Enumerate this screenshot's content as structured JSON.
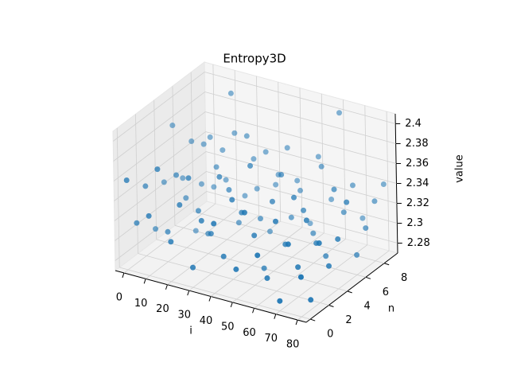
{
  "chart_data": {
    "type": "scatter3d",
    "title": "Entropy3D",
    "xlabel": "i",
    "ylabel": "n",
    "zlabel": "value",
    "color": "#1f77b4",
    "grid": true,
    "xlim": [
      -4,
      84
    ],
    "ylim": [
      -0.45,
      9.45
    ],
    "zlim": [
      2.27,
      2.41
    ],
    "xticks": [
      0,
      10,
      20,
      30,
      40,
      50,
      60,
      70,
      80
    ],
    "yticks": [
      0,
      2,
      4,
      6,
      8
    ],
    "zticks": [
      2.28,
      2.3,
      2.32,
      2.34,
      2.36,
      2.38,
      2.4
    ],
    "x": [
      0,
      0,
      0,
      0,
      0,
      0,
      0,
      0,
      0,
      0,
      10,
      10,
      10,
      10,
      10,
      10,
      10,
      10,
      10,
      10,
      20,
      20,
      20,
      20,
      20,
      20,
      20,
      20,
      20,
      20,
      30,
      30,
      30,
      30,
      30,
      30,
      30,
      30,
      30,
      30,
      40,
      40,
      40,
      40,
      40,
      40,
      40,
      40,
      40,
      40,
      50,
      50,
      50,
      50,
      50,
      50,
      50,
      50,
      50,
      50,
      60,
      60,
      60,
      60,
      60,
      60,
      60,
      60,
      60,
      60,
      70,
      70,
      70,
      70,
      70,
      70,
      70,
      70,
      70,
      70,
      80,
      80,
      80,
      80,
      80,
      80,
      80,
      80,
      80,
      80
    ],
    "y": [
      0,
      1,
      2,
      3,
      4,
      5,
      6,
      7,
      8,
      9,
      0,
      1,
      2,
      3,
      4,
      5,
      6,
      7,
      8,
      9,
      0,
      1,
      2,
      3,
      4,
      5,
      6,
      7,
      8,
      9,
      0,
      1,
      2,
      3,
      4,
      5,
      6,
      7,
      8,
      9,
      0,
      1,
      2,
      3,
      4,
      5,
      6,
      7,
      8,
      9,
      0,
      1,
      2,
      3,
      4,
      5,
      6,
      7,
      8,
      9,
      0,
      1,
      2,
      3,
      4,
      5,
      6,
      7,
      8,
      9,
      0,
      1,
      2,
      3,
      4,
      5,
      6,
      7,
      8,
      9,
      0,
      1,
      2,
      3,
      4,
      5,
      6,
      7,
      8,
      9
    ],
    "values": [
      2.36,
      2.31,
      2.34,
      2.29,
      2.33,
      2.38,
      2.32,
      2.35,
      2.3,
      2.34,
      2.33,
      2.37,
      2.3,
      2.35,
      2.32,
      2.28,
      2.36,
      2.31,
      2.34,
      2.39,
      2.31,
      2.34,
      2.36,
      2.32,
      2.29,
      2.35,
      2.33,
      2.37,
      2.3,
      2.33,
      2.29,
      2.33,
      2.31,
      2.36,
      2.34,
      2.3,
      2.38,
      2.32,
      2.35,
      2.31,
      2.34,
      2.3,
      2.35,
      2.33,
      2.37,
      2.31,
      2.29,
      2.34,
      2.36,
      2.32,
      2.3,
      2.35,
      2.32,
      2.28,
      2.34,
      2.36,
      2.31,
      2.33,
      2.29,
      2.35,
      2.32,
      2.29,
      2.34,
      2.31,
      2.35,
      2.33,
      2.3,
      2.36,
      2.32,
      2.4,
      2.28,
      2.33,
      2.3,
      2.34,
      2.31,
      2.29,
      2.35,
      2.32,
      2.34,
      2.3,
      2.31,
      2.28,
      2.33,
      2.3,
      2.32,
      2.35,
      2.29,
      2.31,
      2.33,
      2.34
    ]
  }
}
